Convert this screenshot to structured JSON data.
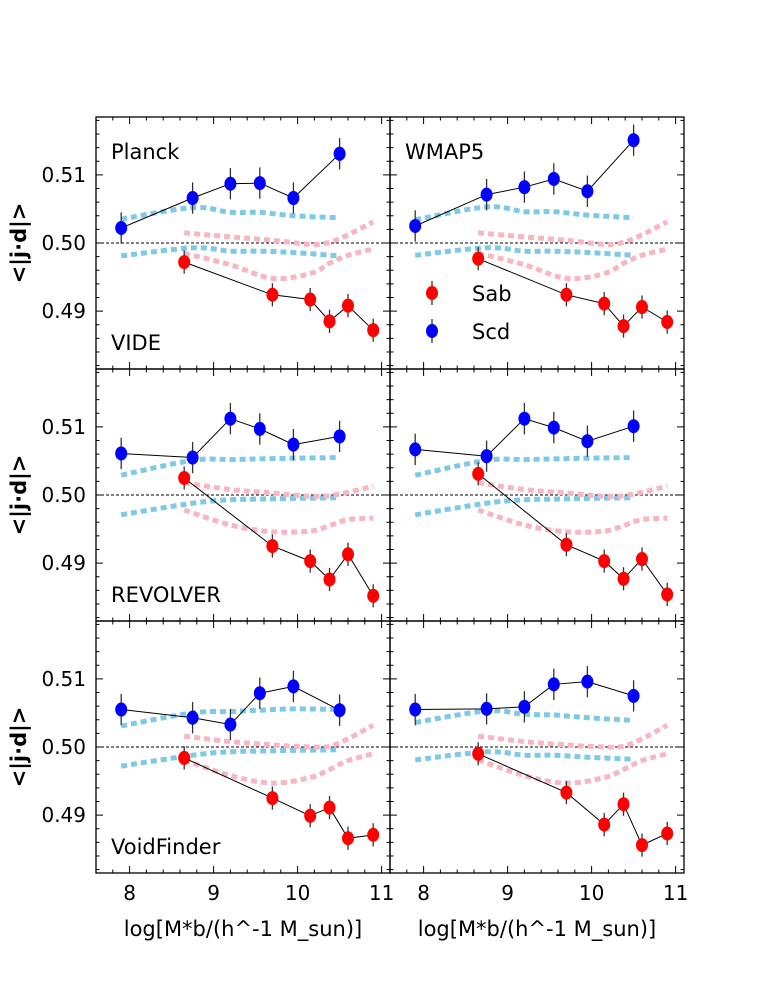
{
  "chart_data": {
    "type": "scatter",
    "layout": "3x2 grid, shared axes",
    "xlabel": "log[M*b/(h^-1 M_sun)]",
    "ylabel": "<|j·d|>",
    "xlim": [
      7.6,
      11.1
    ],
    "ylim": [
      0.4815,
      0.5185
    ],
    "x_ticks": [
      8,
      9,
      10,
      11
    ],
    "x_tick_labels": [
      "8",
      "9",
      "10",
      "11"
    ],
    "y_ticks": [
      0.49,
      0.5,
      0.51
    ],
    "y_tick_labels": [
      "0.49",
      "0.50",
      "0.51"
    ],
    "reference_line": 0.5,
    "legend": {
      "placement": "inside top-right panel, lower-left",
      "entries": [
        {
          "label": "Sab",
          "color": "#ff0000"
        },
        {
          "label": "Scd",
          "color": "#0000ff"
        }
      ]
    },
    "colors": {
      "sab": "#ff0000",
      "scd": "#0000ff",
      "sab_band": "#f7b6c2",
      "scd_band": "#7ec8e8"
    },
    "panels": [
      {
        "row": 0,
        "col": 0,
        "labels": [
          "Planck",
          "VIDE"
        ],
        "sab": {
          "x": [
            8.65,
            9.7,
            10.15,
            10.38,
            10.6,
            10.9
          ],
          "y": [
            0.4972,
            0.4924,
            0.4917,
            0.4885,
            0.4908,
            0.4872
          ],
          "err": [
            0.0017,
            0.0017,
            0.0017,
            0.0017,
            0.0017,
            0.0017
          ]
        },
        "scd": {
          "x": [
            7.9,
            8.75,
            9.2,
            9.55,
            9.95,
            10.5
          ],
          "y": [
            0.5022,
            0.5066,
            0.5087,
            0.5088,
            0.5066,
            0.5131
          ],
          "err": [
            0.0023,
            0.0023,
            0.0023,
            0.0023,
            0.0023,
            0.0023
          ]
        },
        "scd_band": {
          "x": [
            7.9,
            8.75,
            9.2,
            9.55,
            9.95,
            10.5
          ],
          "upper": [
            0.5035,
            0.5052,
            0.5045,
            0.5045,
            0.504,
            0.5037
          ],
          "lower": [
            0.4981,
            0.4993,
            0.4988,
            0.4988,
            0.4986,
            0.4981
          ]
        },
        "sab_band": {
          "x": [
            8.65,
            9.2,
            9.7,
            10.15,
            10.38,
            10.6,
            10.9
          ],
          "upper": [
            0.5015,
            0.5009,
            0.5004,
            0.4998,
            0.5001,
            0.5012,
            0.5031
          ],
          "lower": [
            0.4985,
            0.4968,
            0.4948,
            0.4955,
            0.497,
            0.4982,
            0.4991
          ]
        }
      },
      {
        "row": 0,
        "col": 1,
        "labels": [
          "WMAP5"
        ],
        "sab": {
          "x": [
            8.65,
            9.7,
            10.15,
            10.38,
            10.6,
            10.9
          ],
          "y": [
            0.4977,
            0.4924,
            0.4911,
            0.4878,
            0.4906,
            0.4884
          ],
          "err": [
            0.0017,
            0.0017,
            0.0017,
            0.0017,
            0.0017,
            0.0017
          ]
        },
        "scd": {
          "x": [
            7.9,
            8.75,
            9.2,
            9.55,
            9.95,
            10.5
          ],
          "y": [
            0.5025,
            0.5071,
            0.5082,
            0.5094,
            0.5076,
            0.5151
          ],
          "err": [
            0.0023,
            0.0023,
            0.0023,
            0.0023,
            0.0023,
            0.0023
          ]
        },
        "scd_band": {
          "x": [
            7.9,
            8.75,
            9.2,
            9.55,
            9.95,
            10.5
          ],
          "upper": [
            0.5034,
            0.5053,
            0.5046,
            0.5046,
            0.5041,
            0.5037
          ],
          "lower": [
            0.4982,
            0.4993,
            0.4988,
            0.4988,
            0.4986,
            0.4982
          ]
        },
        "sab_band": {
          "x": [
            8.65,
            9.2,
            9.7,
            10.15,
            10.38,
            10.6,
            10.9
          ],
          "upper": [
            0.5015,
            0.5009,
            0.5004,
            0.4998,
            0.5001,
            0.5012,
            0.5031
          ],
          "lower": [
            0.4985,
            0.4968,
            0.4948,
            0.4955,
            0.497,
            0.4982,
            0.4991
          ]
        }
      },
      {
        "row": 1,
        "col": 0,
        "labels": [
          "REVOLVER"
        ],
        "sab": {
          "x": [
            8.65,
            9.7,
            10.15,
            10.38,
            10.6,
            10.9
          ],
          "y": [
            0.5025,
            0.4925,
            0.4903,
            0.4876,
            0.4913,
            0.4852
          ],
          "err": [
            0.0017,
            0.0017,
            0.0017,
            0.0017,
            0.0017,
            0.0017
          ]
        },
        "scd": {
          "x": [
            7.9,
            8.75,
            9.2,
            9.55,
            9.95,
            10.5
          ],
          "y": [
            0.5061,
            0.5055,
            0.5112,
            0.5097,
            0.5074,
            0.5086
          ],
          "err": [
            0.0023,
            0.0023,
            0.0023,
            0.0023,
            0.0023,
            0.0023
          ]
        },
        "scd_band": {
          "x": [
            7.9,
            8.75,
            9.2,
            9.55,
            9.95,
            10.5
          ],
          "upper": [
            0.5029,
            0.5051,
            0.5052,
            0.5053,
            0.5054,
            0.5055
          ],
          "lower": [
            0.4971,
            0.4988,
            0.4993,
            0.4994,
            0.4995,
            0.4996
          ]
        },
        "sab_band": {
          "x": [
            8.65,
            9.2,
            9.7,
            10.15,
            10.38,
            10.6,
            10.9
          ],
          "upper": [
            0.5018,
            0.5008,
            0.5003,
            0.4998,
            0.4999,
            0.5004,
            0.5013
          ],
          "lower": [
            0.4978,
            0.4956,
            0.4946,
            0.4947,
            0.4955,
            0.4964,
            0.4966
          ]
        }
      },
      {
        "row": 1,
        "col": 1,
        "labels": [],
        "sab": {
          "x": [
            8.65,
            9.7,
            10.15,
            10.38,
            10.6,
            10.9
          ],
          "y": [
            0.5031,
            0.4927,
            0.4903,
            0.4877,
            0.4906,
            0.4854
          ],
          "err": [
            0.0017,
            0.0017,
            0.0017,
            0.0017,
            0.0017,
            0.0017
          ]
        },
        "scd": {
          "x": [
            7.9,
            8.75,
            9.2,
            9.55,
            9.95,
            10.5
          ],
          "y": [
            0.5067,
            0.5057,
            0.5112,
            0.5099,
            0.5079,
            0.5101
          ],
          "err": [
            0.0023,
            0.0023,
            0.0023,
            0.0023,
            0.0023,
            0.0023
          ]
        },
        "scd_band": {
          "x": [
            7.9,
            8.75,
            9.2,
            9.55,
            9.95,
            10.5
          ],
          "upper": [
            0.5029,
            0.5051,
            0.5052,
            0.5053,
            0.5054,
            0.5055
          ],
          "lower": [
            0.4971,
            0.4988,
            0.4993,
            0.4994,
            0.4995,
            0.4996
          ]
        },
        "sab_band": {
          "x": [
            8.65,
            9.2,
            9.7,
            10.15,
            10.38,
            10.6,
            10.9
          ],
          "upper": [
            0.5018,
            0.5008,
            0.5003,
            0.4998,
            0.4999,
            0.5004,
            0.5013
          ],
          "lower": [
            0.4978,
            0.4956,
            0.4946,
            0.4947,
            0.4955,
            0.4964,
            0.4966
          ]
        }
      },
      {
        "row": 2,
        "col": 0,
        "labels": [
          "VoidFinder"
        ],
        "sab": {
          "x": [
            8.65,
            9.7,
            10.15,
            10.38,
            10.6,
            10.9
          ],
          "y": [
            0.4984,
            0.4925,
            0.4899,
            0.4911,
            0.4866,
            0.4871
          ],
          "err": [
            0.0017,
            0.0017,
            0.0017,
            0.0017,
            0.0017,
            0.0017
          ]
        },
        "scd": {
          "x": [
            7.9,
            8.75,
            9.2,
            9.55,
            9.95,
            10.5
          ],
          "y": [
            0.5055,
            0.5043,
            0.5033,
            0.5079,
            0.5089,
            0.5054
          ],
          "err": [
            0.0023,
            0.0023,
            0.0023,
            0.0023,
            0.0023,
            0.0023
          ]
        },
        "scd_band": {
          "x": [
            7.9,
            8.75,
            9.2,
            9.55,
            9.95,
            10.5
          ],
          "upper": [
            0.5031,
            0.505,
            0.5052,
            0.5054,
            0.5056,
            0.5055
          ],
          "lower": [
            0.4972,
            0.4988,
            0.4993,
            0.4994,
            0.4995,
            0.4996
          ]
        },
        "sab_band": {
          "x": [
            8.65,
            9.2,
            9.7,
            10.15,
            10.38,
            10.6,
            10.9
          ],
          "upper": [
            0.5016,
            0.5008,
            0.5003,
            0.5,
            0.5001,
            0.5012,
            0.5032
          ],
          "lower": [
            0.4981,
            0.4958,
            0.4947,
            0.4955,
            0.4967,
            0.498,
            0.499
          ]
        }
      },
      {
        "row": 2,
        "col": 1,
        "labels": [],
        "sab": {
          "x": [
            8.65,
            9.7,
            10.15,
            10.38,
            10.6,
            10.9
          ],
          "y": [
            0.499,
            0.4933,
            0.4886,
            0.4916,
            0.4856,
            0.4873
          ],
          "err": [
            0.0017,
            0.0017,
            0.0017,
            0.0017,
            0.0017,
            0.0017
          ]
        },
        "scd": {
          "x": [
            7.9,
            8.75,
            9.2,
            9.55,
            9.95,
            10.5
          ],
          "y": [
            0.5055,
            0.5056,
            0.5059,
            0.5092,
            0.5096,
            0.5075
          ],
          "err": [
            0.0023,
            0.0023,
            0.0023,
            0.0023,
            0.0023,
            0.0023
          ]
        },
        "scd_band": {
          "x": [
            7.9,
            8.75,
            9.2,
            9.55,
            9.95,
            10.5
          ],
          "upper": [
            0.5036,
            0.5053,
            0.5048,
            0.5047,
            0.5043,
            0.5039
          ],
          "lower": [
            0.4981,
            0.4993,
            0.4988,
            0.4988,
            0.4985,
            0.4982
          ]
        },
        "sab_band": {
          "x": [
            8.65,
            9.2,
            9.7,
            10.15,
            10.38,
            10.6,
            10.9
          ],
          "upper": [
            0.5016,
            0.5008,
            0.5003,
            0.5,
            0.5001,
            0.5012,
            0.5032
          ],
          "lower": [
            0.4981,
            0.4958,
            0.4947,
            0.4955,
            0.4967,
            0.498,
            0.499
          ]
        }
      }
    ]
  }
}
